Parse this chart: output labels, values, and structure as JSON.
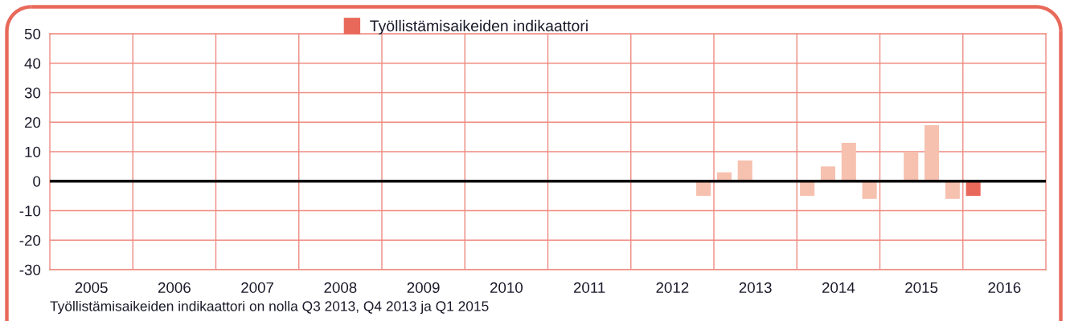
{
  "chart_data": {
    "type": "bar",
    "x": [
      2012.875,
      2013.125,
      2013.375,
      2013.625,
      2013.875,
      2014.125,
      2014.375,
      2014.625,
      2014.875,
      2015.125,
      2015.375,
      2015.625,
      2015.875,
      2016.125
    ],
    "series": [
      {
        "name": "Työllistämisaikeiden indikaattori",
        "color": "#e8695a",
        "values": [
          -5,
          3,
          7,
          0,
          0,
          -5,
          5,
          13,
          -6,
          0,
          10,
          19,
          -6,
          -5
        ],
        "colors": [
          "#f6c1af",
          "#f6c1af",
          "#f6c1af",
          "#f6c1af",
          "#f6c1af",
          "#f6c1af",
          "#f6c1af",
          "#f6c1af",
          "#f6c1af",
          "#f6c1af",
          "#f6c1af",
          "#f6c1af",
          "#f6c1af",
          "#e8695a"
        ]
      }
    ],
    "xlim": [
      2005,
      2017
    ],
    "xticks": [
      {
        "value": 2005.5,
        "label": "2005"
      },
      {
        "value": 2006.5,
        "label": "2006"
      },
      {
        "value": 2007.5,
        "label": "2007"
      },
      {
        "value": 2008.5,
        "label": "2008"
      },
      {
        "value": 2009.5,
        "label": "2009"
      },
      {
        "value": 2010.5,
        "label": "2010"
      },
      {
        "value": 2011.5,
        "label": "2011"
      },
      {
        "value": 2012.5,
        "label": "2012"
      },
      {
        "value": 2013.5,
        "label": "2013"
      },
      {
        "value": 2014.5,
        "label": "2014"
      },
      {
        "value": 2015.5,
        "label": "2015"
      },
      {
        "value": 2016.5,
        "label": "2016"
      },
      {
        "value": 2006,
        "label": null
      },
      {
        "value": 2007,
        "label": null
      },
      {
        "value": 2008,
        "label": null
      },
      {
        "value": 2009,
        "label": null
      },
      {
        "value": 2010,
        "label": null
      },
      {
        "value": 2011,
        "label": null
      },
      {
        "value": 2012,
        "label": null
      },
      {
        "value": 2013,
        "label": null
      },
      {
        "value": 2014,
        "label": null
      },
      {
        "value": 2015,
        "label": null
      },
      {
        "value": 2016,
        "label": null
      }
    ],
    "ylim": [
      -30,
      50
    ],
    "yticks": [
      -30,
      -20,
      -10,
      0,
      10,
      20,
      30,
      40,
      50
    ],
    "ref_lines": [
      {
        "axis": "y",
        "value": 0,
        "color": "#000000"
      }
    ],
    "grid": true,
    "legend": "top",
    "annotations": [
      "Työllistämisaikeiden indikaattori on nolla Q3 2013, Q4 2013 ja Q1 2015"
    ]
  }
}
